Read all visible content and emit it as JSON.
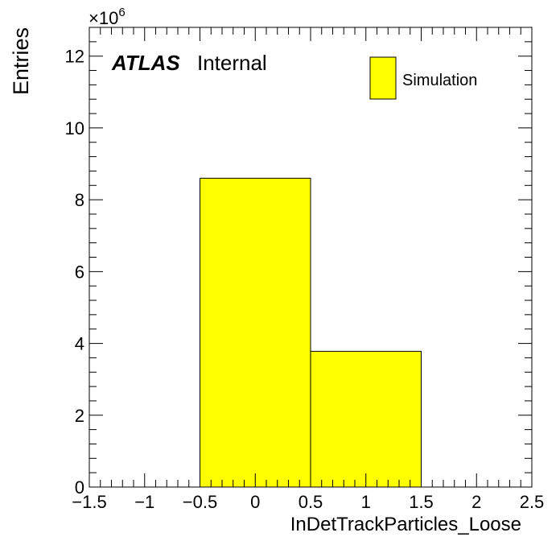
{
  "chart_data": {
    "type": "bar",
    "histogram": true,
    "bins": [
      {
        "low": -1.5,
        "high": -0.5,
        "value": 0
      },
      {
        "low": -0.5,
        "high": 0.5,
        "value": 8.6
      },
      {
        "low": 0.5,
        "high": 1.5,
        "value": 3.78
      },
      {
        "low": 1.5,
        "high": 2.5,
        "value": 0
      }
    ],
    "xlabel": "InDetTrackParticles_Loose",
    "ylabel": "Entries",
    "y_multiplier": "×10",
    "y_exponent": "6",
    "xlim": [
      -1.5,
      2.5
    ],
    "ylim": [
      0,
      12.8
    ],
    "xticks": [
      -1.5,
      -1,
      -0.5,
      0,
      0.5,
      1,
      1.5,
      2,
      2.5
    ],
    "xtick_labels": [
      "−1.5",
      "−1",
      "−0.5",
      "0",
      "0.5",
      "1",
      "1.5",
      "2",
      "2.5"
    ],
    "yticks": [
      0,
      2,
      4,
      6,
      8,
      10,
      12
    ],
    "ytick_labels": [
      "0",
      "2",
      "4",
      "6",
      "8",
      "10",
      "12"
    ],
    "grid": false,
    "fill_color": "#ffff00",
    "legend": {
      "position": "top-right",
      "entries": [
        {
          "label": "Simulation",
          "color": "#ffff00"
        }
      ]
    },
    "annotation": {
      "bold": "ATLAS",
      "normal": "Internal"
    }
  }
}
